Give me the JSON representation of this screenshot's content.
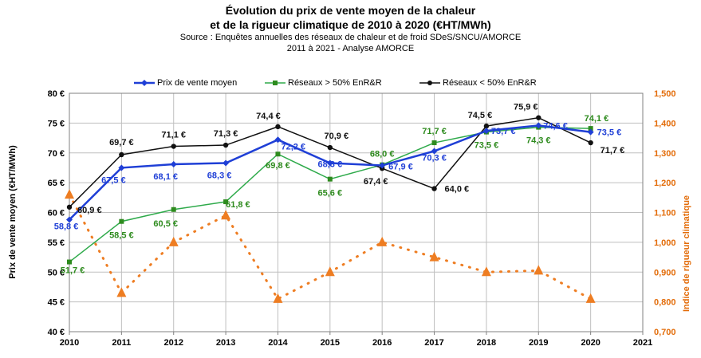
{
  "chart_data": {
    "type": "line",
    "title_line1": "Évolution du prix de vente moyen de la chaleur",
    "title_line2": "et de la rigueur climatique de 2010 à 2020 (€HT/MWh)",
    "subtitle_line1": "Source : Enquêtes annuelles des réseaux de chaleur et de froid SDeS/SNCU/AMORCE",
    "subtitle_line2": "2011 à 2021 - Analyse AMORCE",
    "ylabel": "Prix de vente moyen (€HT/MWh)",
    "y2label": "Indice de rigueur climatique",
    "x": [
      2010,
      2011,
      2012,
      2013,
      2014,
      2015,
      2016,
      2017,
      2018,
      2019,
      2020,
      2021
    ],
    "ylim": [
      40,
      80
    ],
    "y_ticks": [
      "40 €",
      "45 €",
      "50 €",
      "55 €",
      "60 €",
      "65 €",
      "70 €",
      "75 €",
      "80 €"
    ],
    "y2lim": [
      0.7,
      1.5
    ],
    "y2_ticks": [
      "0,700",
      "0,800",
      "0,900",
      "1,000",
      "1,100",
      "1,200",
      "1,300",
      "1,400",
      "1,500"
    ],
    "grid": true,
    "legend_position": "top",
    "series": [
      {
        "name": "Prix de vente moyen",
        "color": "#1f3fd6",
        "x": [
          2010,
          2011,
          2012,
          2013,
          2014,
          2015,
          2016,
          2017,
          2018,
          2019,
          2020
        ],
        "values": [
          58.8,
          67.5,
          68.1,
          68.3,
          72.2,
          68.3,
          67.9,
          70.3,
          73.7,
          74.6,
          73.5
        ],
        "labels": [
          "58,8 €",
          "67,5 €",
          "68,1 €",
          "68,3 €",
          "72,2 €",
          "68,3 €",
          "67,9 €",
          "70,3 €",
          "73,7 €",
          "74,6 €",
          "73,5 €"
        ]
      },
      {
        "name": "Réseaux > 50% EnR&R",
        "color": "#2eaa4a",
        "label_color": "#2e8b1e",
        "x": [
          2010,
          2011,
          2012,
          2013,
          2014,
          2015,
          2016,
          2017,
          2018,
          2019,
          2020
        ],
        "values": [
          51.7,
          58.5,
          60.5,
          61.8,
          69.8,
          65.6,
          68.0,
          71.7,
          73.5,
          74.3,
          74.1
        ],
        "labels": [
          "51,7 €",
          "58,5 €",
          "60,5 €",
          "61,8 €",
          "69,8 €",
          "65,6 €",
          "68,0 €",
          "71,7 €",
          "73,5 €",
          "74,3 €",
          "74,1 €"
        ]
      },
      {
        "name": "Réseaux < 50% EnR&R",
        "color": "#111111",
        "x": [
          2010,
          2011,
          2012,
          2013,
          2014,
          2015,
          2016,
          2017,
          2018,
          2019,
          2020
        ],
        "values": [
          60.9,
          69.7,
          71.1,
          71.3,
          74.4,
          70.9,
          67.4,
          64.0,
          74.5,
          75.9,
          71.7
        ],
        "labels": [
          "60,9 €",
          "69,7 €",
          "71,1 €",
          "71,3 €",
          "74,4 €",
          "70,9 €",
          "67,4 €",
          "64,0 €",
          "74,5 €",
          "75,9 €",
          "71,7 €"
        ]
      },
      {
        "name": "Indice de rigueur climatique",
        "color": "#ee7d22",
        "axis": "right",
        "x": [
          2010,
          2011,
          2012,
          2013,
          2014,
          2015,
          2016,
          2017,
          2018,
          2019,
          2020
        ],
        "values": [
          1.16,
          0.83,
          1.0,
          1.09,
          0.81,
          0.9,
          1.0,
          0.95,
          0.9,
          0.905,
          0.81
        ]
      }
    ]
  }
}
